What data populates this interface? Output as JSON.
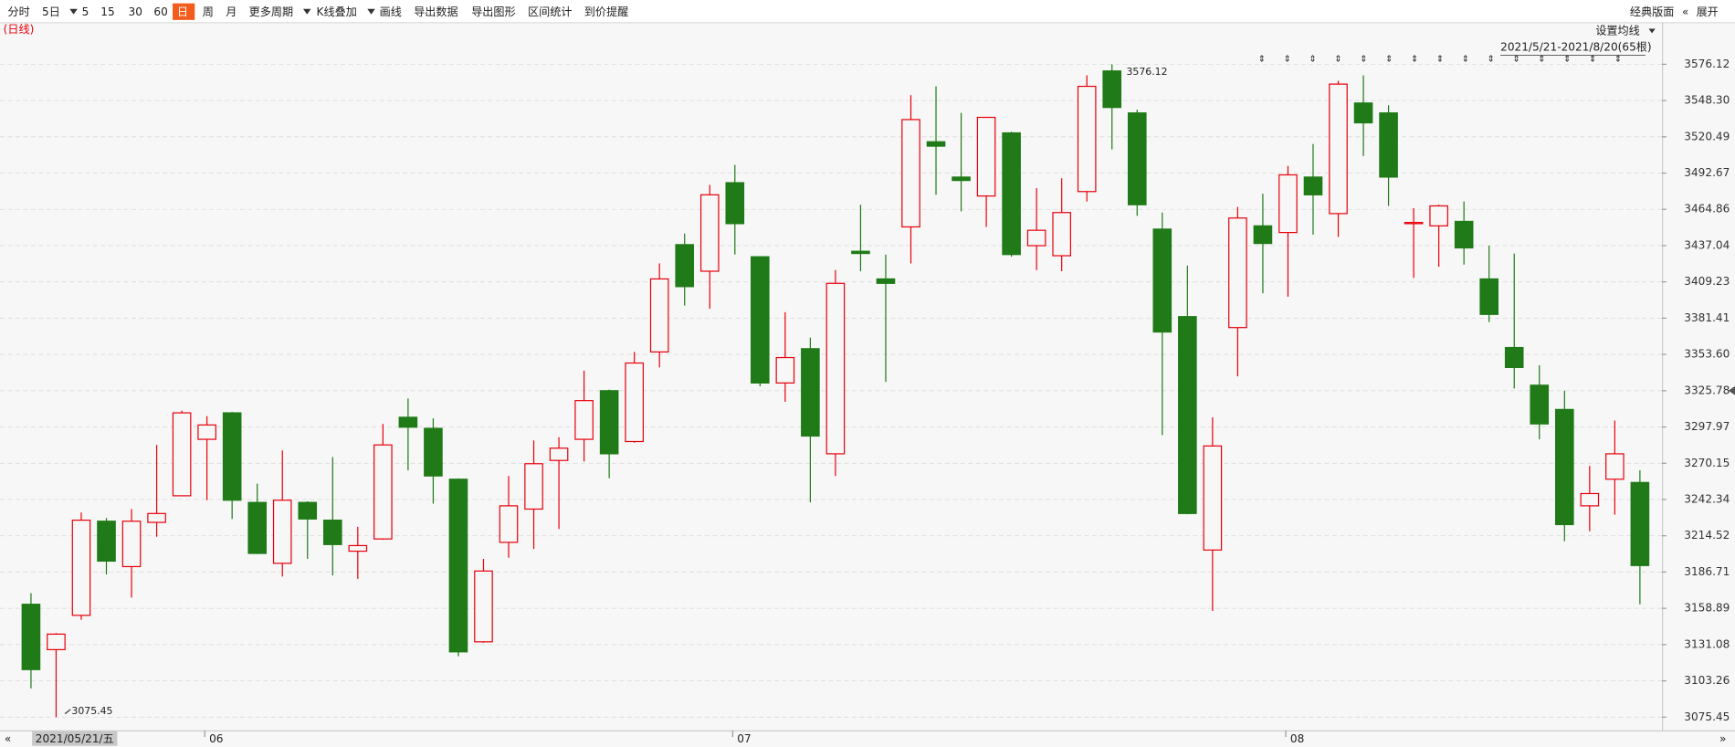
{
  "toolbar": {
    "items": [
      "分时",
      "5日",
      "5",
      "15",
      "30",
      "60",
      "日",
      "周",
      "月",
      "更多周期",
      "K线叠加",
      "画线",
      "导出数据",
      "导出图形",
      "区间统计",
      "到价提醒"
    ],
    "right": [
      "经典版面",
      "展开"
    ]
  },
  "chart_data": {
    "type": "candlestick",
    "period_label": "(日线)",
    "ma_setting": "设置均线",
    "range_label": "2021/5/21-2021/8/20(65根)",
    "annotations": [
      "3576.12",
      "3075.45"
    ],
    "categories": [
      "2021/05/21/五",
      null,
      null,
      null,
      null,
      null,
      null,
      "06",
      null,
      null,
      null,
      null,
      null,
      null,
      null,
      null,
      null,
      null,
      null,
      null,
      null,
      null,
      null,
      null,
      null,
      null,
      null,
      null,
      "07",
      null,
      null,
      null,
      null,
      null,
      null,
      null,
      null,
      null,
      null,
      null,
      null,
      null,
      null,
      null,
      null,
      null,
      null,
      null,
      null,
      null,
      "08",
      null,
      null,
      null,
      null,
      null,
      null,
      null,
      null,
      null,
      null,
      null,
      null,
      null,
      null
    ],
    "open": [
      3162.0,
      3127.2,
      3153.5,
      3225.7,
      3190.9,
      3224.8,
      3245.2,
      3288.5,
      3308.8,
      3240.1,
      3193.4,
      3240.1,
      3226.5,
      3202.7,
      3212.1,
      3305.4,
      3296.9,
      3257.9,
      3133.2,
      3209.5,
      3235.0,
      3272.3,
      3288.5,
      3325.8,
      3286.8,
      3355.5,
      3437.8,
      3417.4,
      3485.3,
      3428.5,
      3331.7,
      3358.0,
      3277.4,
      3432.7,
      3411.5,
      3451.4,
      3516.7,
      3489.6,
      3475.1,
      3523.5,
      3437.0,
      3429.3,
      3478.5,
      3571.0,
      3538.8,
      3449.7,
      3382.6,
      3203.6,
      3374.2,
      3452.2,
      3447.1,
      3489.6,
      3461.6,
      3546.4,
      3538.8,
      3453.9,
      3452.2,
      3455.6,
      3411.5,
      3358.9,
      3330.0,
      3311.4,
      3237.5,
      3257.9,
      3255.4
    ],
    "high": [
      3170.5,
      3139.9,
      3232.4,
      3228.2,
      3235.0,
      3284.2,
      3310.5,
      3306.3,
      3309.5,
      3254.5,
      3280.0,
      3241.0,
      3274.9,
      3221.4,
      3300.3,
      3319.8,
      3304.6,
      3258.5,
      3196.8,
      3260.4,
      3287.6,
      3290.1,
      3341.1,
      3326.6,
      3355.5,
      3423.4,
      3446.3,
      3483.6,
      3498.9,
      3429.0,
      3386.0,
      3366.5,
      3418.3,
      3468.4,
      3430.2,
      3552.4,
      3559.2,
      3538.8,
      3535.8,
      3524.4,
      3481.1,
      3488.7,
      3567.6,
      3576.12,
      3541.3,
      3462.4,
      3421.7,
      3305.4,
      3466.7,
      3476.8,
      3498.1,
      3515.0,
      3563.4,
      3567.6,
      3544.7,
      3465.8,
      3468.4,
      3470.9,
      3437.0,
      3431.0,
      3345.3,
      3325.8,
      3268.1,
      3302.9,
      3264.7
    ],
    "low": [
      3097.5,
      3075.45,
      3150.1,
      3184.9,
      3167.1,
      3213.8,
      3245.2,
      3241.8,
      3227.4,
      3200.5,
      3183.2,
      3196.8,
      3184.1,
      3181.5,
      3211.5,
      3264.7,
      3239.2,
      3122.1,
      3132.5,
      3197.7,
      3204.4,
      3219.7,
      3271.5,
      3258.7,
      3285.9,
      3343.6,
      3391.1,
      3388.6,
      3430.2,
      3329.2,
      3317.3,
      3240.1,
      3260.4,
      3417.4,
      3332.6,
      3423.4,
      3476.0,
      3463.3,
      3451.4,
      3428.5,
      3418.3,
      3417.4,
      3470.9,
      3510.8,
      3459.9,
      3291.8,
      3231.0,
      3156.9,
      3336.8,
      3400.5,
      3397.9,
      3445.4,
      3443.7,
      3505.7,
      3467.5,
      3412.3,
      3420.8,
      3422.5,
      3378.4,
      3327.5,
      3288.5,
      3210.4,
      3218.0,
      3230.7,
      3162.0
    ],
    "close": [
      3111.9,
      3139.1,
      3226.5,
      3195.1,
      3225.7,
      3231.6,
      3308.8,
      3299.5,
      3241.8,
      3201.0,
      3241.8,
      3227.4,
      3207.8,
      3207.0,
      3284.2,
      3297.8,
      3260.4,
      3125.5,
      3187.5,
      3237.5,
      3269.8,
      3281.7,
      3318.2,
      3277.4,
      3347.0,
      3411.5,
      3405.6,
      3476.0,
      3453.9,
      3331.7,
      3351.2,
      3291.0,
      3408.1,
      3431.0,
      3408.1,
      3533.7,
      3513.3,
      3487.0,
      3535.4,
      3430.2,
      3448.8,
      3462.4,
      3559.2,
      3543.0,
      3468.4,
      3370.8,
      3231.6,
      3283.4,
      3458.2,
      3438.7,
      3491.3,
      3476.0,
      3560.9,
      3531.2,
      3489.6,
      3454.8,
      3467.5,
      3435.3,
      3384.3,
      3343.6,
      3300.3,
      3223.1,
      3246.9,
      3277.4,
      3191.7
    ],
    "up_color": "#e8000b",
    "down_color": "#1f7a17",
    "ylim": [
      3065.3,
      3608.4
    ],
    "yticks": [
      3075.45,
      3103.26,
      3131.08,
      3158.89,
      3186.71,
      {
        "value": 3214.52,
        "label": "3214.52"
      },
      3242.34,
      3270.15,
      3297.97,
      3325.78,
      {
        "value": 3353.6,
        "label": "3353.60"
      },
      3381.41,
      3409.23,
      3437.04,
      3464.86,
      3492.67,
      3520.49,
      {
        "value": 3548.3,
        "label": "3548.30"
      },
      3576.12
    ],
    "grid": true
  }
}
